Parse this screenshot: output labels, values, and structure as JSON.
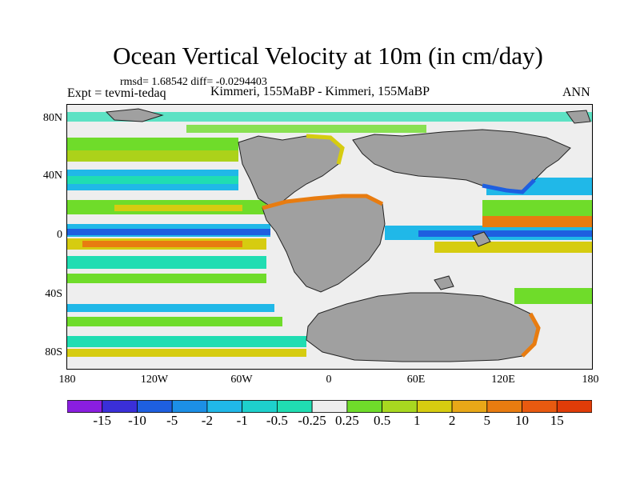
{
  "figure": {
    "title": "Ocean Vertical Velocity at 10m (in cm/day)",
    "stats": "rmsd= 1.68542 diff= -0.0294403",
    "expt": "Expt = tevmi-tedaq",
    "cases": "Kimmeri, 155MaBP - Kimmeri, 155MaBP",
    "season": "ANN"
  },
  "axes": {
    "y_ticks": [
      "80N",
      "40N",
      "0",
      "40S",
      "80S"
    ],
    "x_ticks": [
      "180",
      "120W",
      "60W",
      "0",
      "60E",
      "120E",
      "180"
    ]
  },
  "colorbar": {
    "labels": [
      "-15",
      "-10",
      "-5",
      "-2",
      "-1",
      "-0.5",
      "-0.25",
      "0.25",
      "0.5",
      "1",
      "2",
      "5",
      "10",
      "15"
    ],
    "colors": [
      "#8a1ee0",
      "#3a2fd8",
      "#1e5fe0",
      "#1c8fe6",
      "#20b8e8",
      "#1ed0cc",
      "#20ddb2",
      "#eeeeee",
      "#6fdc2a",
      "#a8d820",
      "#d6cc10",
      "#e8a818",
      "#e87c10",
      "#e85a10",
      "#e03c08"
    ]
  },
  "map_colors": {
    "land": "#a0a0a0",
    "ocean_neutral": "#eeeeee",
    "upwelling_weak": "#6fdc2a",
    "upwelling_mid": "#d6cc10",
    "upwelling_strong": "#e87c10",
    "downwelling_weak": "#20ddb2",
    "downwelling_mid": "#20b8e8",
    "downwelling_strong": "#1e5fe0"
  }
}
